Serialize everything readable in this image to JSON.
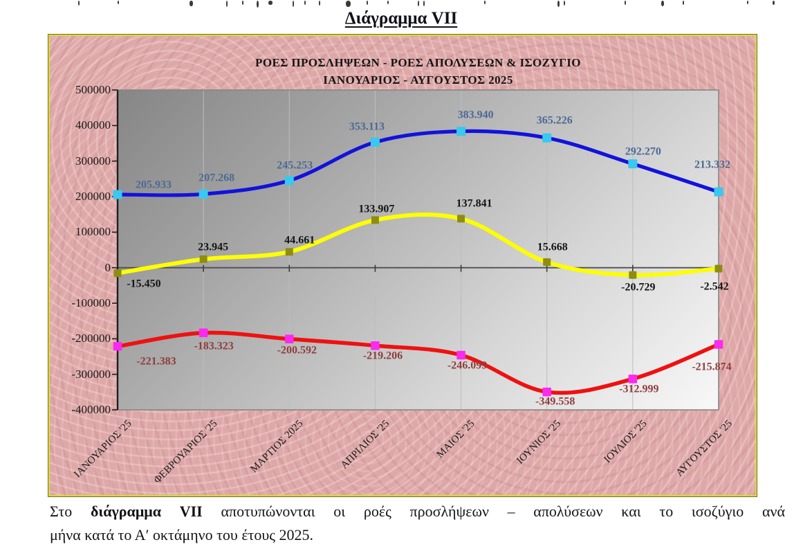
{
  "page": {
    "heading": "Διάγραμμα VII",
    "caption": {
      "prefix": "Στο ",
      "bold": "διάγραμμα VII",
      "line1_rest": " αποτυπώνονται οι ροές προσλήψεων – απολύσεων και το ισοζύγιο ανά",
      "line2": "μήνα κατά το Α′ οκτάμηνο του έτους 2025."
    }
  },
  "chart_data": {
    "type": "line",
    "title_lines": [
      "ΡΟΕΣ ΠΡΟΣΛΗΨΕΩΝ - ΡΟΕΣ ΑΠΟΛΥΣΕΩΝ & ΙΣΟΖΥΓΙΟ",
      "ΙΑΝΟΥΑΡΙΟΣ - ΑΥΓΟΥΣΤΟΣ 2025"
    ],
    "categories": [
      "ΙΑΝΟΥΑΡΙΟΣ '25",
      "ΦΕΒΡΟΥΑΡΙΟΣ '25",
      "ΜΑΡΤΙΟΣ 2025",
      "ΑΠΡΙΛΙΟΣ '25",
      "ΜΑΙΟΣ '25",
      "ΙΟΥΝΙΟΣ '25",
      "ΙΟΥΛΙΟΣ '25",
      "ΑΥΓΟΥΣΤΟΣ '25"
    ],
    "y_tick_labels": [
      "500000",
      "400000",
      "300000",
      "200000",
      "100000",
      "0",
      "-100000",
      "-200000",
      "-300000",
      "-400000"
    ],
    "ylim": [
      -400000,
      500000
    ],
    "grid": "vertical",
    "legend": "none",
    "smoothed": true,
    "background_color": "#dfa8a8",
    "plot_gradient": [
      "#868686",
      "#f8f8f8"
    ],
    "series": [
      {
        "name": "ΡΟΕΣ ΠΡΟΣΛΗΨΕΩΝ",
        "line_color": "#1212dd",
        "marker_color": "#38c8f0",
        "label_color": "#4a6a94",
        "values": [
          205933,
          207268,
          245253,
          353113,
          383940,
          365226,
          292270,
          213332
        ],
        "labels": [
          "205.933",
          "207.268",
          "245.253",
          "353.113",
          "383.940",
          "365.226",
          "292.270",
          "213.332"
        ]
      },
      {
        "name": "ΙΣΟΖΥΓΙΟ",
        "line_color": "#fdfd05",
        "marker_color": "#8d8d10",
        "label_color": "#141414",
        "values": [
          -15450,
          23945,
          44661,
          133907,
          137841,
          15668,
          -20729,
          -2542
        ],
        "labels": [
          "-15.450",
          "23.945",
          "44.661",
          "133.907",
          "137.841",
          "15.668",
          "-20.729",
          "-2.542"
        ]
      },
      {
        "name": "ΡΟΕΣ ΑΠΟΛΥΣΕΩΝ",
        "line_color": "#ee1111",
        "marker_color": "#fb2af0",
        "label_color": "#903d3d",
        "values": [
          -221383,
          -183323,
          -200592,
          -219206,
          -246099,
          -349558,
          -312999,
          -215874
        ],
        "labels": [
          "-221.383",
          "-183.323",
          "-200.592",
          "-219.206",
          "-246.099",
          "-349.558",
          "-312.999",
          "-215.874"
        ]
      }
    ]
  }
}
